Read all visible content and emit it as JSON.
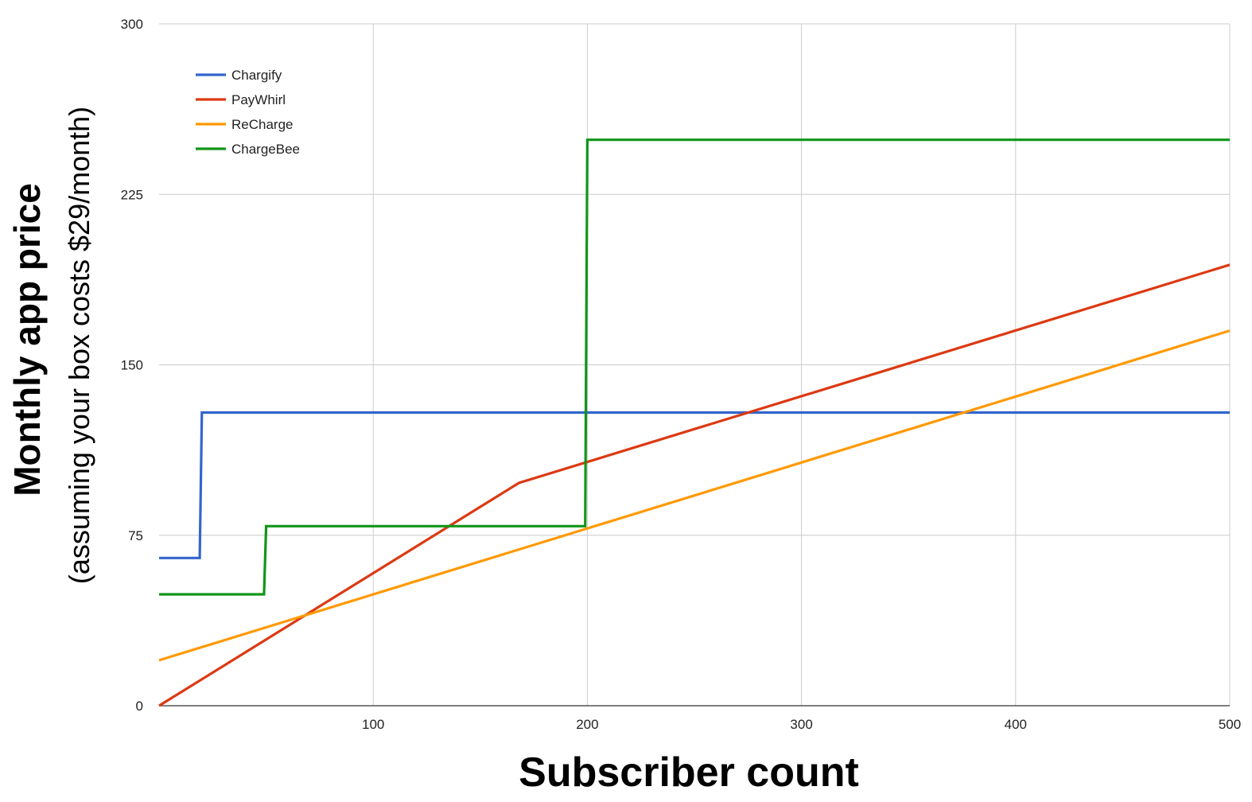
{
  "chart_data": {
    "type": "line",
    "title": "",
    "xlabel": "Subscriber count",
    "ylabel": "Monthly app price",
    "ylabel_sub": "(assuming your box costs $29/month)",
    "xlim": [
      0,
      500
    ],
    "ylim": [
      0,
      300
    ],
    "x_ticks": [
      100,
      200,
      300,
      400,
      500
    ],
    "y_ticks": [
      0,
      75,
      150,
      225,
      300
    ],
    "grid": true,
    "legend_position": "top-left",
    "series": [
      {
        "name": "Chargify",
        "color": "#3366cc",
        "x": [
          0,
          19,
          20,
          500
        ],
        "y": [
          65,
          65,
          129,
          129
        ]
      },
      {
        "name": "PayWhirl",
        "color": "#dc3912",
        "x": [
          0,
          168,
          500
        ],
        "y": [
          0,
          98,
          194
        ]
      },
      {
        "name": "ReCharge",
        "color": "#ff9900",
        "x": [
          0,
          500
        ],
        "y": [
          20,
          165
        ]
      },
      {
        "name": "ChargeBee",
        "color": "#109618",
        "x": [
          0,
          49,
          50,
          199,
          200,
          500
        ],
        "y": [
          49,
          49,
          79,
          79,
          249,
          249
        ]
      }
    ]
  }
}
